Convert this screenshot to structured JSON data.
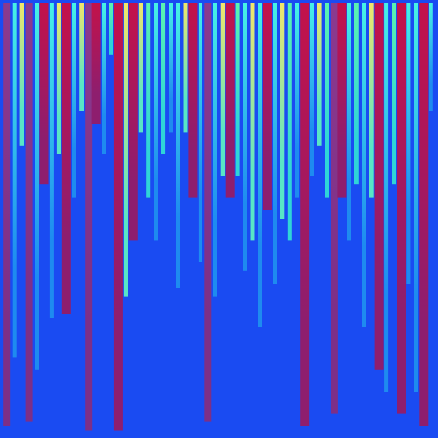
{
  "chart_data": {
    "type": "heatmap",
    "title": "",
    "xlabel": "",
    "ylabel": "",
    "grid": false,
    "legend": "none",
    "colormap": "jet",
    "background_color": "#1A4BF2",
    "columns": [
      {
        "id": 1,
        "kind": "purple",
        "fraction": 0.98
      },
      {
        "id": 2,
        "kind": "cyan",
        "fraction": 0.82
      },
      {
        "id": 3,
        "kind": "yellow",
        "fraction": 0.33
      },
      {
        "id": 4,
        "kind": "purple",
        "fraction": 0.97
      },
      {
        "id": 5,
        "kind": "cyan",
        "fraction": 0.85
      },
      {
        "id": 6,
        "kind": "red",
        "fraction": 0.42
      },
      {
        "id": 7,
        "kind": "cyan",
        "fraction": 0.73
      },
      {
        "id": 8,
        "kind": "yellow",
        "fraction": 0.35
      },
      {
        "id": 9,
        "kind": "red",
        "fraction": 0.72
      },
      {
        "id": 10,
        "kind": "cyan",
        "fraction": 0.45
      },
      {
        "id": 11,
        "kind": "yellow",
        "fraction": 0.25
      },
      {
        "id": 12,
        "kind": "purple",
        "fraction": 0.99
      },
      {
        "id": 13,
        "kind": "red",
        "fraction": 0.28
      },
      {
        "id": 14,
        "kind": "cyan",
        "fraction": 0.35
      },
      {
        "id": 15,
        "kind": "green",
        "fraction": 0.12
      },
      {
        "id": 16,
        "kind": "red",
        "fraction": 0.99
      },
      {
        "id": 17,
        "kind": "yellow",
        "fraction": 0.68
      },
      {
        "id": 18,
        "kind": "red",
        "fraction": 0.55
      },
      {
        "id": 19,
        "kind": "yellow",
        "fraction": 0.3
      },
      {
        "id": 20,
        "kind": "green",
        "fraction": 0.45
      },
      {
        "id": 21,
        "kind": "cyan",
        "fraction": 0.55
      },
      {
        "id": 22,
        "kind": "green",
        "fraction": 0.35
      },
      {
        "id": 23,
        "kind": "cyan",
        "fraction": 0.3
      },
      {
        "id": 24,
        "kind": "cyan",
        "fraction": 0.66
      },
      {
        "id": 25,
        "kind": "yellow",
        "fraction": 0.3
      },
      {
        "id": 26,
        "kind": "red",
        "fraction": 0.45
      },
      {
        "id": 27,
        "kind": "cyan",
        "fraction": 0.6
      },
      {
        "id": 28,
        "kind": "purple",
        "fraction": 0.97
      },
      {
        "id": 29,
        "kind": "cyan",
        "fraction": 0.68
      },
      {
        "id": 30,
        "kind": "yellow",
        "fraction": 0.4
      },
      {
        "id": 31,
        "kind": "red",
        "fraction": 0.45
      },
      {
        "id": 32,
        "kind": "green",
        "fraction": 0.4
      },
      {
        "id": 33,
        "kind": "cyan",
        "fraction": 0.62
      },
      {
        "id": 34,
        "kind": "yellow",
        "fraction": 0.55
      },
      {
        "id": 35,
        "kind": "cyan",
        "fraction": 0.75
      },
      {
        "id": 36,
        "kind": "red",
        "fraction": 0.48
      },
      {
        "id": 37,
        "kind": "cyan",
        "fraction": 0.65
      },
      {
        "id": 38,
        "kind": "yellow",
        "fraction": 0.5
      },
      {
        "id": 39,
        "kind": "green",
        "fraction": 0.55
      },
      {
        "id": 40,
        "kind": "cyan",
        "fraction": 0.45
      },
      {
        "id": 41,
        "kind": "red",
        "fraction": 0.98
      },
      {
        "id": 42,
        "kind": "cyan",
        "fraction": 0.4
      },
      {
        "id": 43,
        "kind": "yellow",
        "fraction": 0.33
      },
      {
        "id": 44,
        "kind": "green",
        "fraction": 0.45
      },
      {
        "id": 45,
        "kind": "purple",
        "fraction": 0.95
      },
      {
        "id": 46,
        "kind": "red",
        "fraction": 0.45
      },
      {
        "id": 47,
        "kind": "cyan",
        "fraction": 0.55
      },
      {
        "id": 48,
        "kind": "green",
        "fraction": 0.42
      },
      {
        "id": 49,
        "kind": "cyan",
        "fraction": 0.75
      },
      {
        "id": 50,
        "kind": "yellow",
        "fraction": 0.45
      },
      {
        "id": 51,
        "kind": "red",
        "fraction": 0.85
      },
      {
        "id": 52,
        "kind": "cyan",
        "fraction": 0.9
      },
      {
        "id": 53,
        "kind": "green",
        "fraction": 0.42
      },
      {
        "id": 54,
        "kind": "red",
        "fraction": 0.95
      },
      {
        "id": 55,
        "kind": "cyan",
        "fraction": 0.65
      },
      {
        "id": 56,
        "kind": "cyan",
        "fraction": 0.9
      },
      {
        "id": 57,
        "kind": "red",
        "fraction": 0.98
      },
      {
        "id": 58,
        "kind": "cyan",
        "fraction": 0.25
      }
    ]
  }
}
